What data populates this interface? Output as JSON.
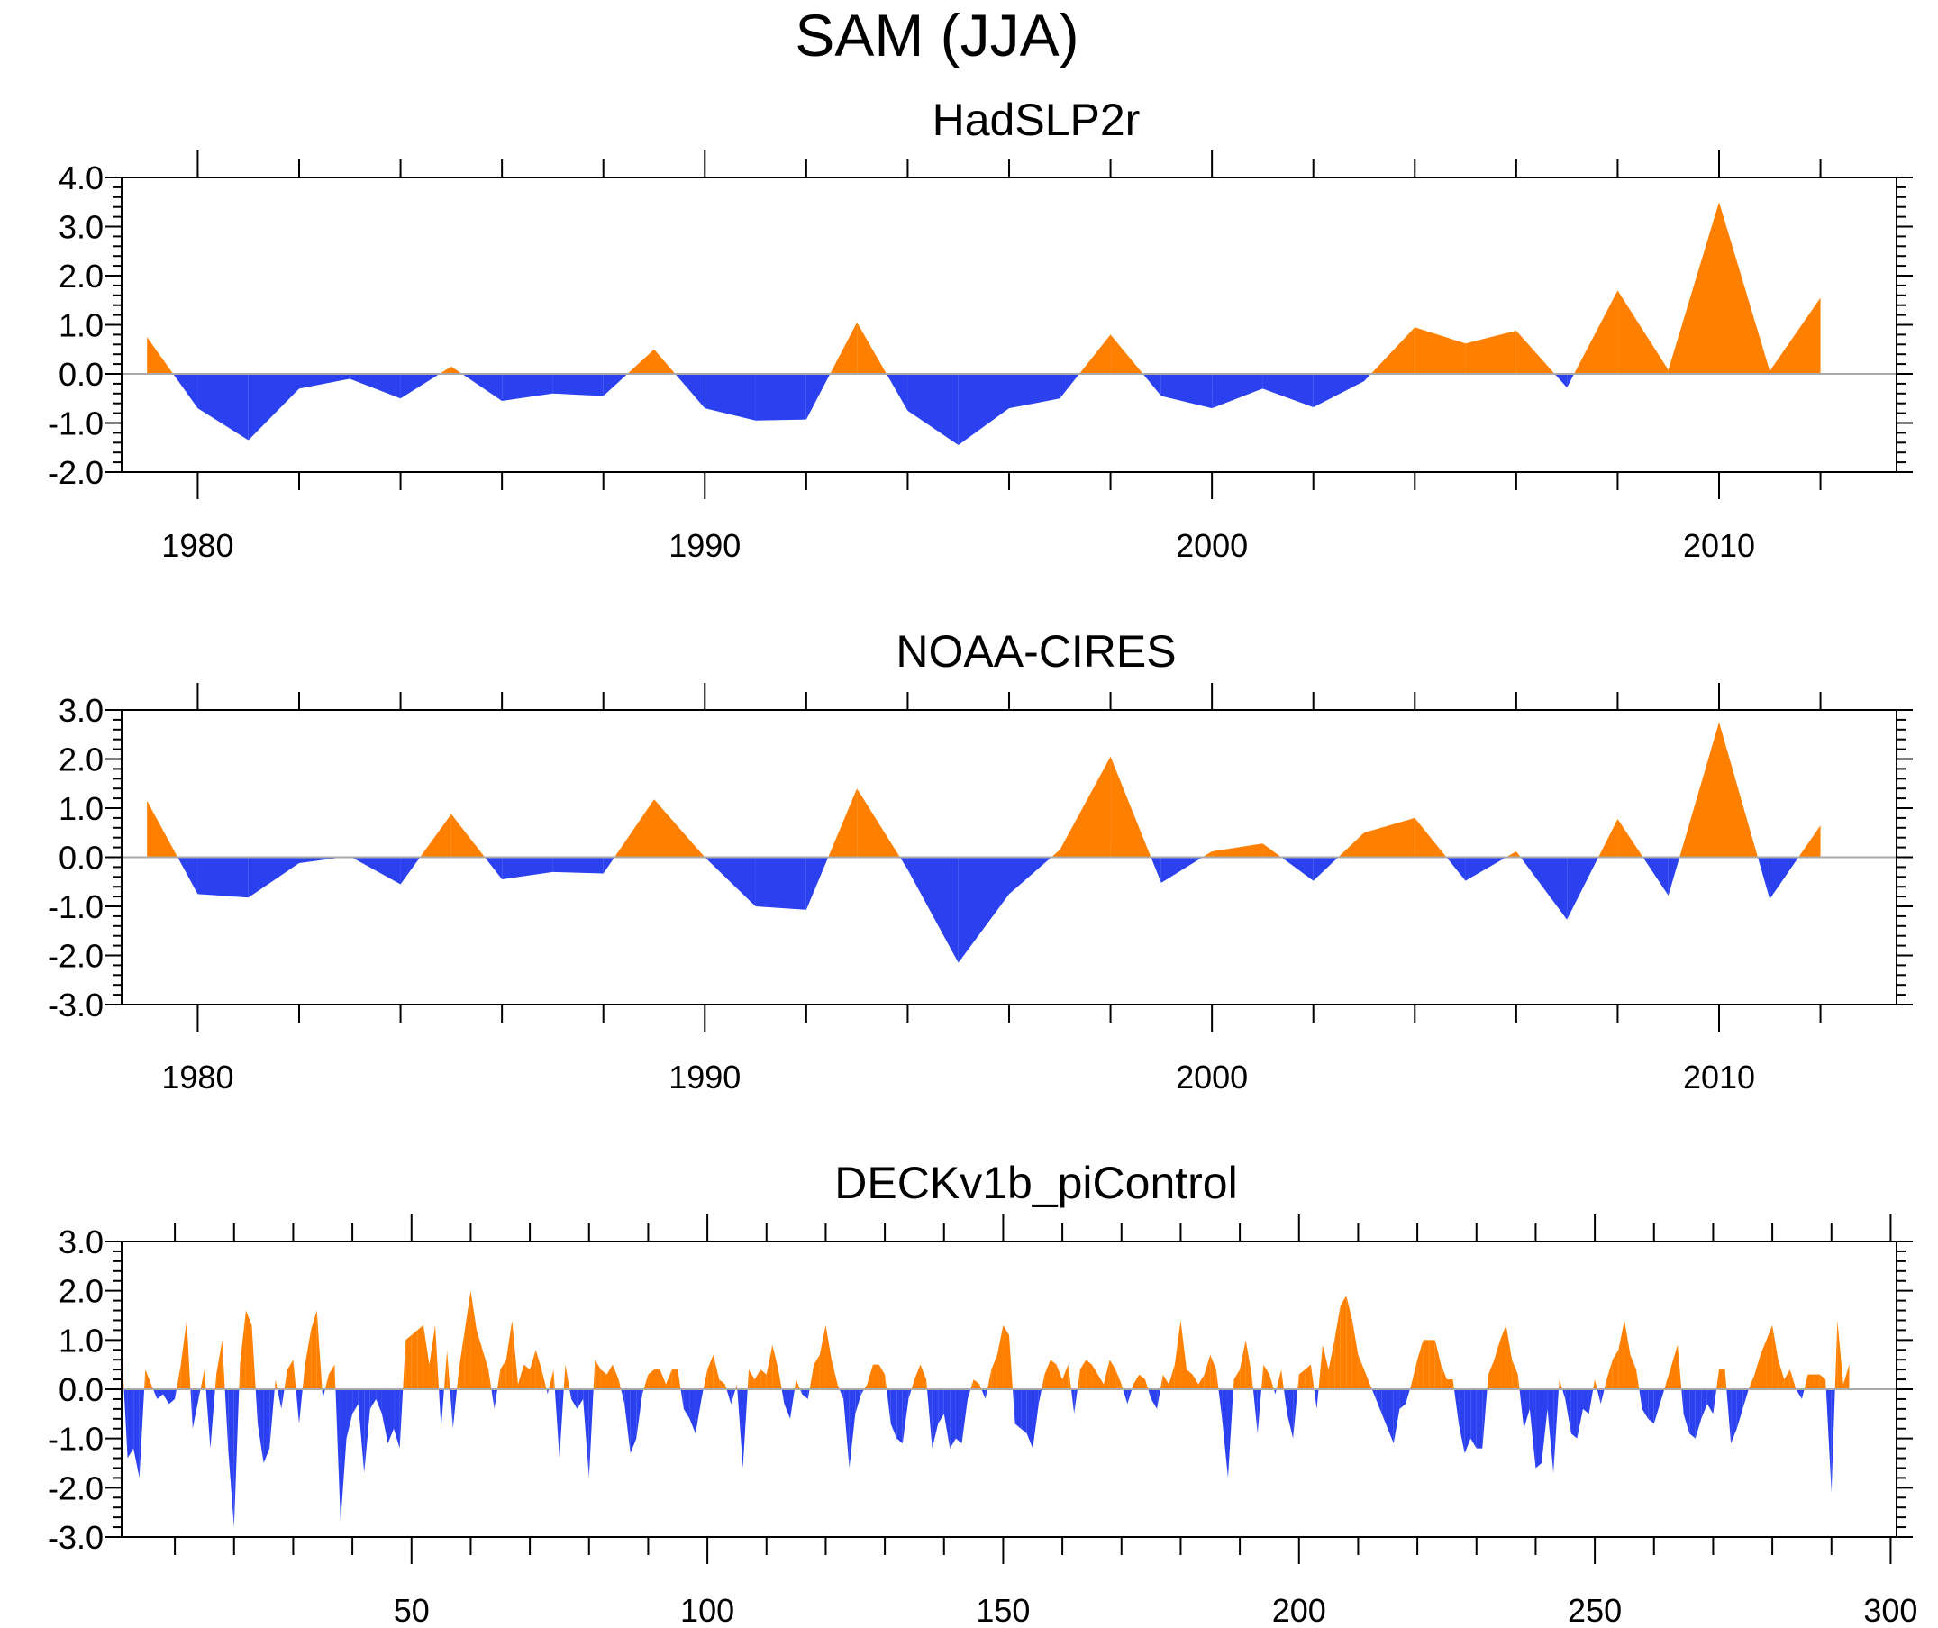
{
  "page": {
    "title": "SAM (JJA)"
  },
  "colors": {
    "positive": "#ff8000",
    "negative": "#2b41f0",
    "frame": "#000000",
    "zero_line": "#aaaaaa"
  },
  "chart_data": [
    {
      "type": "area",
      "title": "HadSLP2r",
      "xlim": [
        1978.5,
        2013.5
      ],
      "ylim": [
        -2.0,
        4.0
      ],
      "yticks": [
        -2.0,
        -1.0,
        0.0,
        1.0,
        2.0,
        3.0,
        4.0
      ],
      "ytick_labels": [
        "-2.0",
        "-1.0",
        "0.0",
        "1.0",
        "2.0",
        "3.0",
        "4.0"
      ],
      "xticks": [
        1980,
        1990,
        2000,
        2010
      ],
      "xtick_labels": [
        "1980",
        "1990",
        "2000",
        "2010"
      ],
      "x": [
        1979,
        1980,
        1981,
        1982,
        1983,
        1984,
        1985,
        1986,
        1987,
        1988,
        1989,
        1990,
        1991,
        1992,
        1993,
        1994,
        1995,
        1996,
        1997,
        1998,
        1999,
        2000,
        2001,
        2002,
        2003,
        2004,
        2005,
        2006,
        2007,
        2008,
        2009,
        2010,
        2011,
        2012
      ],
      "values": [
        0.75,
        -0.7,
        -1.35,
        -0.3,
        -0.1,
        -0.5,
        0.15,
        -0.55,
        -0.4,
        -0.45,
        0.5,
        -0.7,
        -0.95,
        -0.93,
        1.05,
        -0.75,
        -1.45,
        -0.7,
        -0.5,
        0.8,
        -0.45,
        -0.7,
        -0.3,
        -0.68,
        -0.15,
        0.95,
        0.62,
        0.88,
        -0.28,
        1.7,
        0.08,
        3.5,
        0.06,
        1.55
      ]
    },
    {
      "type": "area",
      "title": "NOAA-CIRES",
      "xlim": [
        1978.5,
        2013.5
      ],
      "ylim": [
        -3.0,
        3.0
      ],
      "yticks": [
        -3.0,
        -2.0,
        -1.0,
        0.0,
        1.0,
        2.0,
        3.0
      ],
      "ytick_labels": [
        "-3.0",
        "-2.0",
        "-1.0",
        "0.0",
        "1.0",
        "2.0",
        "3.0"
      ],
      "xticks": [
        1980,
        1990,
        2000,
        2010
      ],
      "xtick_labels": [
        "1980",
        "1990",
        "2000",
        "2010"
      ],
      "x": [
        1979,
        1980,
        1981,
        1982,
        1983,
        1984,
        1985,
        1986,
        1987,
        1988,
        1989,
        1990,
        1991,
        1992,
        1993,
        1994,
        1995,
        1996,
        1997,
        1998,
        1999,
        2000,
        2001,
        2002,
        2003,
        2004,
        2005,
        2006,
        2007,
        2008,
        2009,
        2010,
        2011,
        2012
      ],
      "values": [
        1.15,
        -0.75,
        -0.82,
        -0.12,
        0.02,
        -0.55,
        0.88,
        -0.45,
        -0.3,
        -0.33,
        1.18,
        0.0,
        -1.0,
        -1.07,
        1.4,
        -0.25,
        -2.15,
        -0.75,
        0.15,
        2.05,
        -0.52,
        0.12,
        0.28,
        -0.48,
        0.5,
        0.8,
        -0.48,
        0.12,
        -1.27,
        0.78,
        -0.78,
        2.75,
        -0.85,
        0.65
      ]
    },
    {
      "type": "area",
      "title": "DECKv1b_piControl",
      "xlim": [
        1,
        301
      ],
      "ylim": [
        -3.0,
        3.0
      ],
      "yticks": [
        -3.0,
        -2.0,
        -1.0,
        0.0,
        1.0,
        2.0,
        3.0
      ],
      "ytick_labels": [
        "-3.0",
        "-2.0",
        "-1.0",
        "0.0",
        "1.0",
        "2.0",
        "3.0"
      ],
      "xticks": [
        50,
        100,
        150,
        200,
        250,
        300
      ],
      "xtick_labels": [
        "50",
        "100",
        "150",
        "200",
        "250",
        "300"
      ],
      "x_start": 1,
      "values": [
        0.9,
        -1.4,
        -1.2,
        -1.8,
        0.4,
        0.1,
        -0.2,
        -0.1,
        -0.3,
        -0.2,
        0.5,
        1.4,
        -0.8,
        -0.2,
        0.4,
        -1.2,
        0.3,
        1.0,
        -1.2,
        -2.8,
        0.5,
        1.6,
        1.3,
        -0.7,
        -1.5,
        -1.2,
        0.2,
        -0.4,
        0.4,
        0.6,
        -0.7,
        0.5,
        1.2,
        1.6,
        -0.2,
        0.3,
        0.5,
        -2.7,
        -1.0,
        -0.5,
        -0.3,
        -1.7,
        -0.4,
        -0.2,
        -0.5,
        -1.1,
        -0.8,
        -1.2,
        1.0,
        1.1,
        1.2,
        1.3,
        0.5,
        1.3,
        -0.8,
        0.8,
        -0.8,
        0.4,
        1.2,
        2.0,
        1.2,
        0.8,
        0.4,
        -0.4,
        0.4,
        0.6,
        1.4,
        0.1,
        0.5,
        0.4,
        0.8,
        0.4,
        -0.1,
        0.4,
        -1.4,
        0.5,
        -0.2,
        -0.4,
        -0.2,
        -1.8,
        0.6,
        0.4,
        0.3,
        0.5,
        0.2,
        -0.3,
        -1.3,
        -1.0,
        -0.1,
        0.3,
        0.4,
        0.4,
        0.1,
        0.4,
        0.4,
        -0.4,
        -0.6,
        -0.9,
        -0.2,
        0.4,
        0.7,
        0.2,
        0.1,
        -0.3,
        0.1,
        -1.6,
        0.4,
        0.2,
        0.4,
        0.3,
        0.9,
        0.4,
        -0.3,
        -0.6,
        0.2,
        -0.1,
        -0.2,
        0.5,
        0.7,
        1.3,
        0.6,
        0.1,
        -0.2,
        -1.6,
        -0.5,
        -0.1,
        0.1,
        0.5,
        0.5,
        0.3,
        -0.7,
        -1.0,
        -1.1,
        -0.2,
        0.2,
        0.5,
        0.2,
        -1.2,
        -0.7,
        -0.5,
        -1.2,
        -1.0,
        -1.1,
        -0.2,
        0.2,
        0.1,
        -0.2,
        0.4,
        0.7,
        1.3,
        1.1,
        -0.7,
        -0.8,
        -0.9,
        -1.2,
        -0.3,
        0.3,
        0.6,
        0.5,
        0.2,
        0.5,
        -0.5,
        0.4,
        0.6,
        0.5,
        0.3,
        0.1,
        0.6,
        0.4,
        0.1,
        -0.3,
        0.1,
        0.3,
        0.2,
        -0.2,
        -0.4,
        0.3,
        0.1,
        0.5,
        1.4,
        0.4,
        0.3,
        0.1,
        0.3,
        0.7,
        0.4,
        -0.6,
        -1.8,
        0.2,
        0.4,
        1.0,
        0.3,
        -0.9,
        0.5,
        0.3,
        -0.1,
        0.4,
        -0.5,
        -1.0,
        0.3,
        0.4,
        0.5,
        -0.4,
        0.9,
        0.4,
        1.0,
        1.7,
        1.9,
        1.4,
        0.7,
        0.4,
        0.1,
        -0.2,
        -0.5,
        -0.8,
        -1.1,
        -0.4,
        -0.3,
        0.1,
        0.6,
        1.0,
        1.0,
        1.0,
        0.5,
        0.2,
        0.2,
        -0.7,
        -1.3,
        -1.0,
        -1.2,
        -1.2,
        0.3,
        0.6,
        1.0,
        1.3,
        0.6,
        0.3,
        -0.8,
        -0.4,
        -1.6,
        -1.5,
        -0.4,
        -1.7,
        0.2,
        -0.2,
        -0.9,
        -1.0,
        -0.4,
        -0.5,
        0.2,
        -0.3,
        0.2,
        0.6,
        0.8,
        1.4,
        0.7,
        0.4,
        -0.4,
        -0.6,
        -0.7,
        -0.3,
        0.1,
        0.5,
        0.9,
        -0.5,
        -0.9,
        -1.0,
        -0.6,
        -0.3,
        -0.5,
        0.4,
        0.4,
        -1.1,
        -0.8,
        -0.4,
        0.0,
        0.3,
        0.7,
        1.0,
        1.3,
        0.6,
        0.2,
        0.4,
        0.0,
        -0.2,
        0.3,
        0.3,
        0.3,
        0.2,
        -2.1,
        1.4,
        0.1,
        0.5
      ]
    }
  ]
}
